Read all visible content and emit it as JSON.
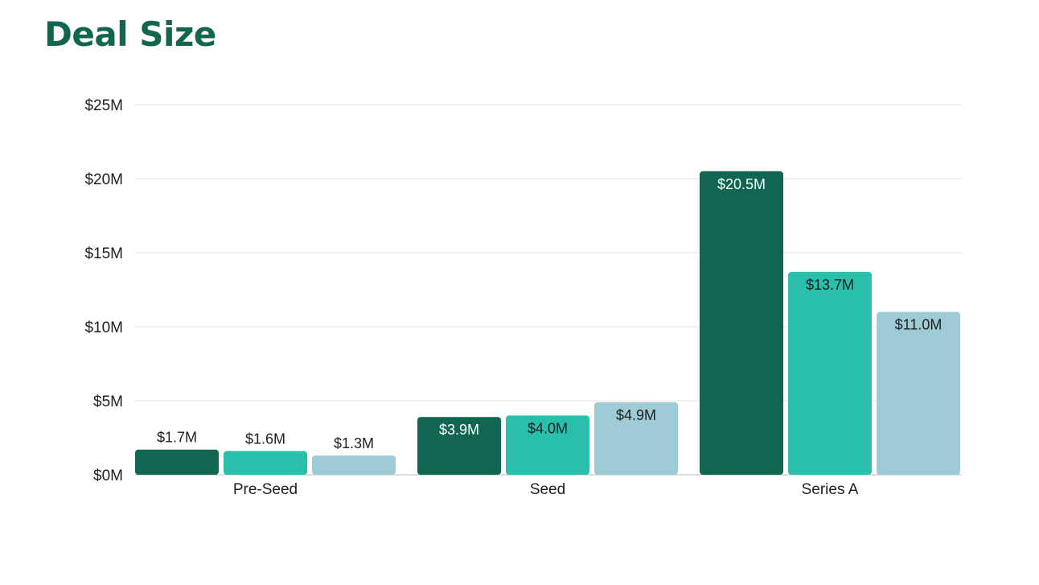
{
  "colors": {
    "title": "#12664f",
    "series": [
      "#116651",
      "#29bfab",
      "#9ecbd6"
    ],
    "grid": "#e3e3e3",
    "axis": "#bdbdbd"
  },
  "chart_data": {
    "type": "bar",
    "title": "Deal Size",
    "xlabel": "",
    "ylabel": "",
    "categories": [
      "Pre-Seed",
      "Seed",
      "Series A"
    ],
    "series": [
      {
        "values": [
          1.7,
          3.9,
          20.5
        ],
        "labels": [
          "$1.7M",
          "$3.9M",
          "$20.5M"
        ]
      },
      {
        "values": [
          1.6,
          4.0,
          13.7
        ],
        "labels": [
          "$1.6M",
          "$4.0M",
          "$13.7M"
        ]
      },
      {
        "values": [
          1.3,
          4.9,
          11.0
        ],
        "labels": [
          "$1.3M",
          "$4.9M",
          "$11.0M"
        ]
      }
    ],
    "ylim": [
      0,
      25
    ],
    "yticks": [
      0,
      5,
      10,
      15,
      20,
      25
    ],
    "ytick_labels": [
      "$0M",
      "$5M",
      "$10M",
      "$15M",
      "$20M",
      "$25M"
    ],
    "grid": true,
    "legend": "none"
  }
}
